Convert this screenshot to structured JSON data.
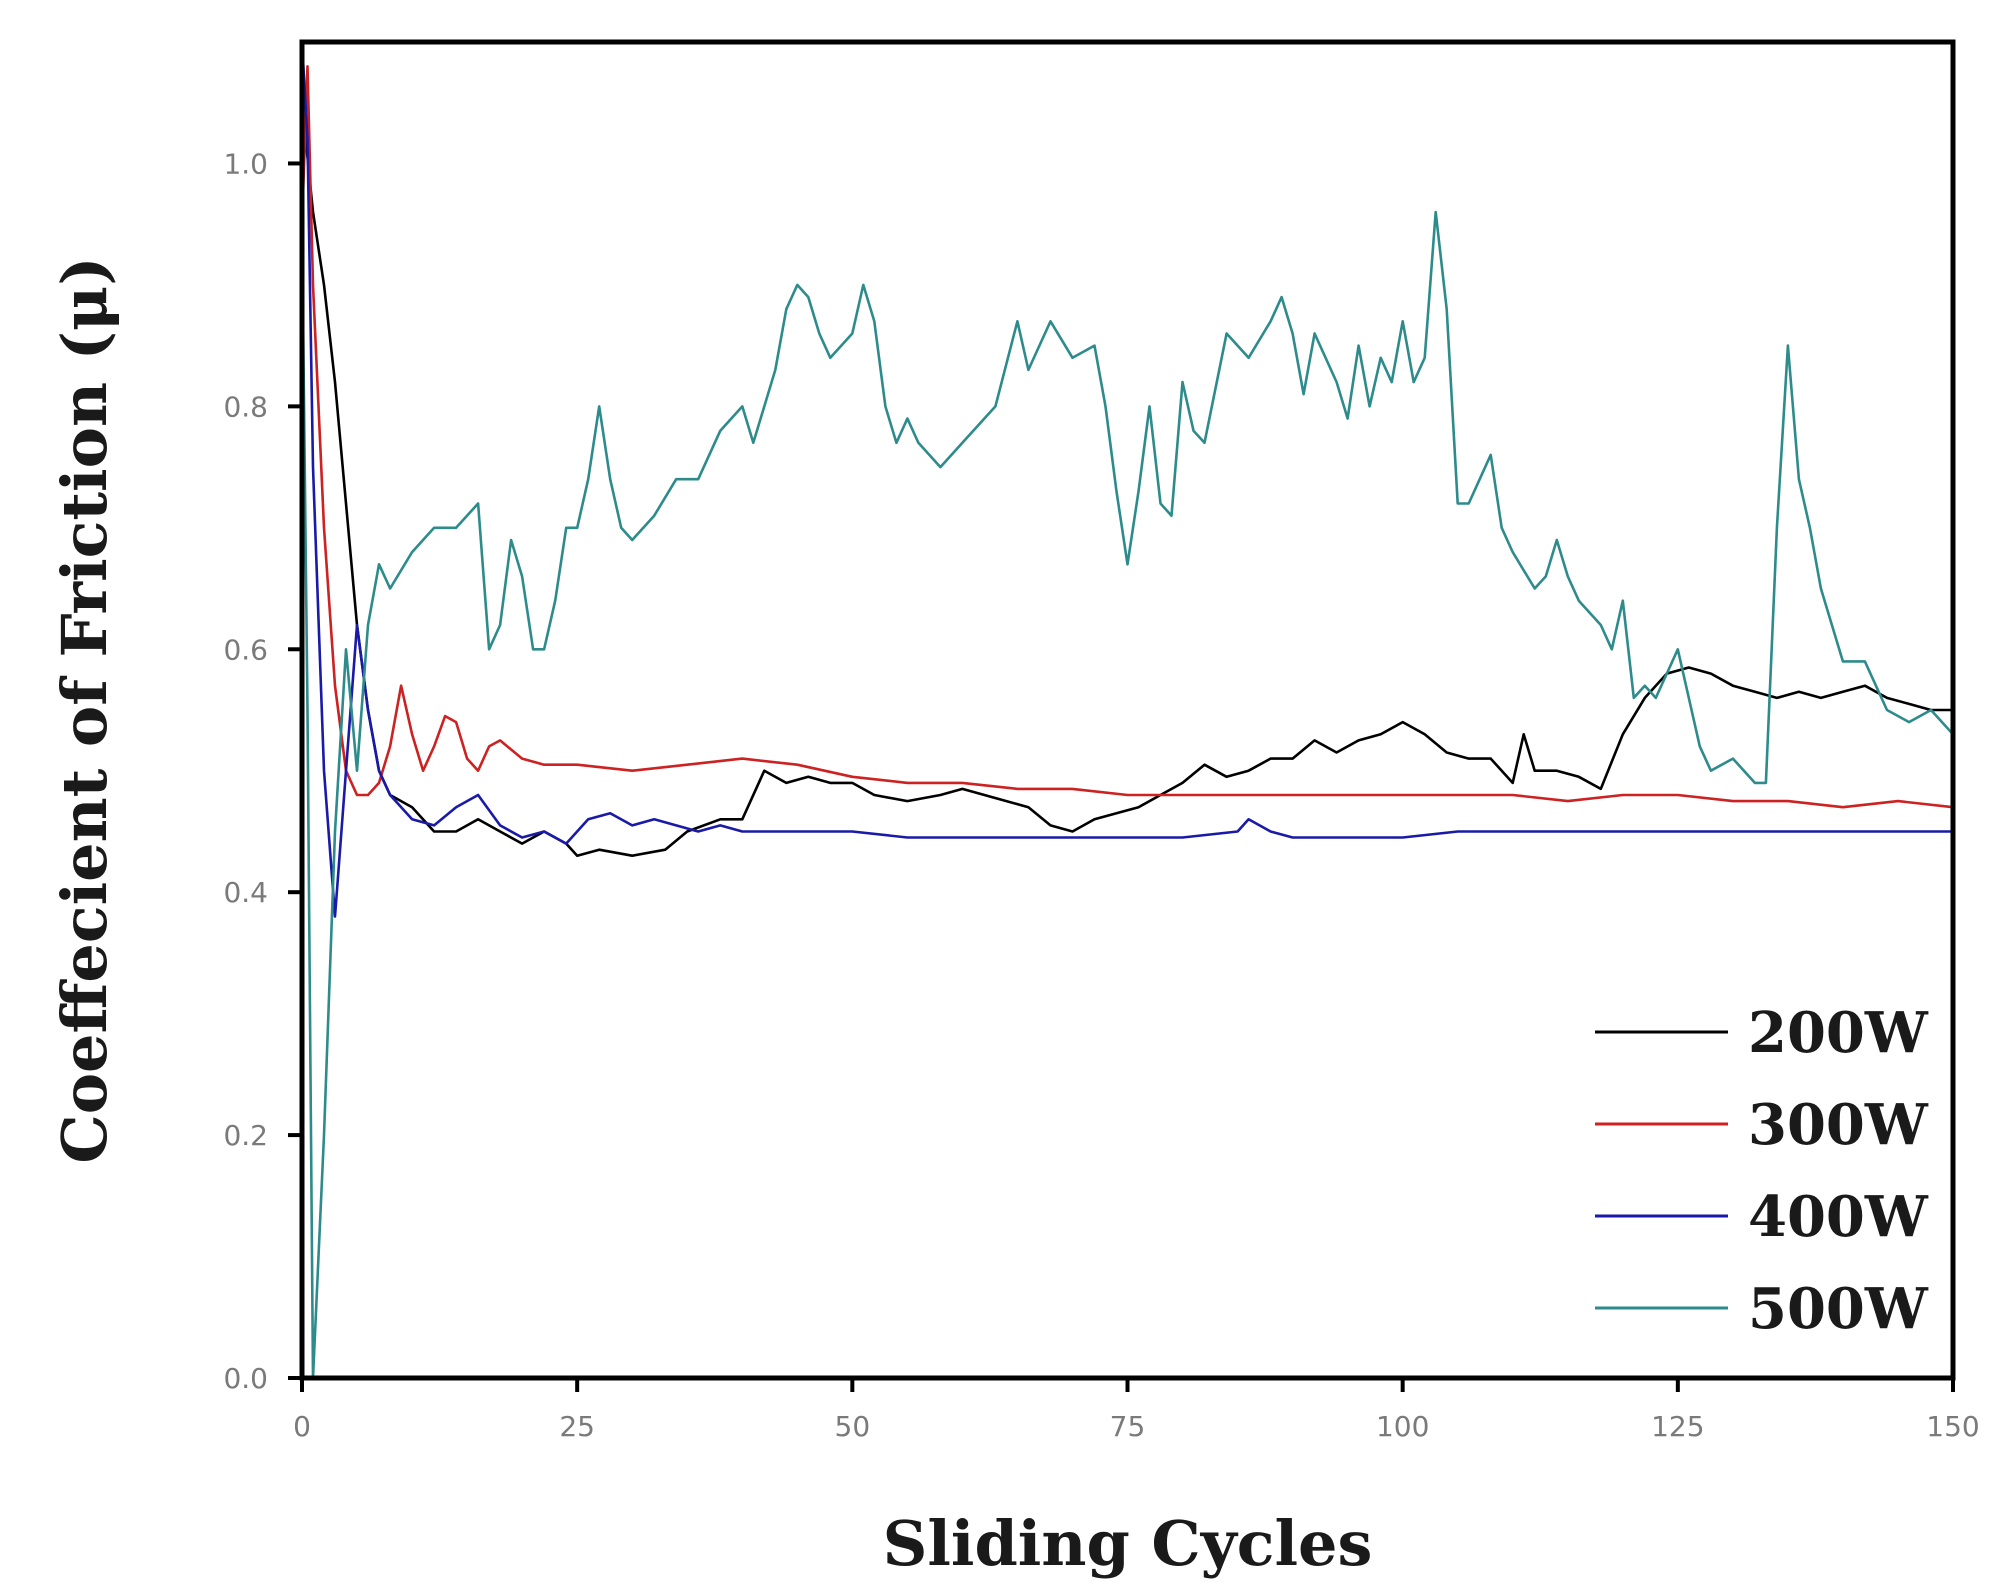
{
  "chart_data": {
    "type": "line",
    "title": "",
    "xlabel": "Sliding Cycles",
    "ylabel": "Coeffecient of Friction (μ)",
    "xlim": [
      0,
      150
    ],
    "ylim": [
      0,
      1.1
    ],
    "x_ticks": [
      0,
      25,
      50,
      75,
      100,
      125,
      150
    ],
    "x_tick_labels": [
      "0",
      "25",
      "50",
      "75",
      "100",
      "125",
      "150"
    ],
    "y_ticks": [
      0.0,
      0.2,
      0.4,
      0.6,
      0.8,
      1.0
    ],
    "y_tick_labels": [
      "0.0",
      "0.2",
      "0.4",
      "0.6",
      "0.8",
      "1.0"
    ],
    "grid": false,
    "legend_position": "bottom-right",
    "series": [
      {
        "name": "200W",
        "color": "#000000",
        "points": [
          [
            0,
            1.05
          ],
          [
            1,
            0.96
          ],
          [
            2,
            0.9
          ],
          [
            3,
            0.82
          ],
          [
            4,
            0.72
          ],
          [
            5,
            0.62
          ],
          [
            6,
            0.55
          ],
          [
            7,
            0.5
          ],
          [
            8,
            0.48
          ],
          [
            10,
            0.47
          ],
          [
            12,
            0.45
          ],
          [
            14,
            0.45
          ],
          [
            16,
            0.46
          ],
          [
            18,
            0.45
          ],
          [
            20,
            0.44
          ],
          [
            22,
            0.45
          ],
          [
            24,
            0.44
          ],
          [
            25,
            0.43
          ],
          [
            27,
            0.435
          ],
          [
            30,
            0.43
          ],
          [
            33,
            0.435
          ],
          [
            35,
            0.45
          ],
          [
            38,
            0.46
          ],
          [
            40,
            0.46
          ],
          [
            42,
            0.5
          ],
          [
            44,
            0.49
          ],
          [
            46,
            0.495
          ],
          [
            48,
            0.49
          ],
          [
            50,
            0.49
          ],
          [
            52,
            0.48
          ],
          [
            55,
            0.475
          ],
          [
            58,
            0.48
          ],
          [
            60,
            0.485
          ],
          [
            62,
            0.48
          ],
          [
            64,
            0.475
          ],
          [
            66,
            0.47
          ],
          [
            68,
            0.455
          ],
          [
            70,
            0.45
          ],
          [
            72,
            0.46
          ],
          [
            74,
            0.465
          ],
          [
            76,
            0.47
          ],
          [
            78,
            0.48
          ],
          [
            80,
            0.49
          ],
          [
            82,
            0.505
          ],
          [
            84,
            0.495
          ],
          [
            86,
            0.5
          ],
          [
            88,
            0.51
          ],
          [
            90,
            0.51
          ],
          [
            92,
            0.525
          ],
          [
            94,
            0.515
          ],
          [
            96,
            0.525
          ],
          [
            98,
            0.53
          ],
          [
            100,
            0.54
          ],
          [
            102,
            0.53
          ],
          [
            104,
            0.515
          ],
          [
            106,
            0.51
          ],
          [
            108,
            0.51
          ],
          [
            110,
            0.49
          ],
          [
            111,
            0.53
          ],
          [
            112,
            0.5
          ],
          [
            114,
            0.5
          ],
          [
            116,
            0.495
          ],
          [
            118,
            0.485
          ],
          [
            120,
            0.53
          ],
          [
            122,
            0.56
          ],
          [
            124,
            0.58
          ],
          [
            126,
            0.585
          ],
          [
            128,
            0.58
          ],
          [
            130,
            0.57
          ],
          [
            132,
            0.565
          ],
          [
            134,
            0.56
          ],
          [
            136,
            0.565
          ],
          [
            138,
            0.56
          ],
          [
            140,
            0.565
          ],
          [
            142,
            0.57
          ],
          [
            144,
            0.56
          ],
          [
            146,
            0.555
          ],
          [
            148,
            0.55
          ],
          [
            150,
            0.55
          ]
        ]
      },
      {
        "name": "300W",
        "color": "#cc2222",
        "points": [
          [
            0,
            0.95
          ],
          [
            0.5,
            1.08
          ],
          [
            1,
            0.9
          ],
          [
            2,
            0.7
          ],
          [
            3,
            0.57
          ],
          [
            4,
            0.5
          ],
          [
            5,
            0.48
          ],
          [
            6,
            0.48
          ],
          [
            7,
            0.49
          ],
          [
            8,
            0.52
          ],
          [
            9,
            0.57
          ],
          [
            10,
            0.53
          ],
          [
            11,
            0.5
          ],
          [
            12,
            0.52
          ],
          [
            13,
            0.545
          ],
          [
            14,
            0.54
          ],
          [
            15,
            0.51
          ],
          [
            16,
            0.5
          ],
          [
            17,
            0.52
          ],
          [
            18,
            0.525
          ],
          [
            20,
            0.51
          ],
          [
            22,
            0.505
          ],
          [
            25,
            0.505
          ],
          [
            30,
            0.5
          ],
          [
            35,
            0.505
          ],
          [
            40,
            0.51
          ],
          [
            45,
            0.505
          ],
          [
            50,
            0.495
          ],
          [
            55,
            0.49
          ],
          [
            60,
            0.49
          ],
          [
            65,
            0.485
          ],
          [
            70,
            0.485
          ],
          [
            75,
            0.48
          ],
          [
            80,
            0.48
          ],
          [
            85,
            0.48
          ],
          [
            90,
            0.48
          ],
          [
            95,
            0.48
          ],
          [
            100,
            0.48
          ],
          [
            105,
            0.48
          ],
          [
            110,
            0.48
          ],
          [
            115,
            0.475
          ],
          [
            120,
            0.48
          ],
          [
            125,
            0.48
          ],
          [
            130,
            0.475
          ],
          [
            135,
            0.475
          ],
          [
            140,
            0.47
          ],
          [
            145,
            0.475
          ],
          [
            150,
            0.47
          ]
        ]
      },
      {
        "name": "400W",
        "color": "#1a1aa8",
        "points": [
          [
            0,
            1.1
          ],
          [
            0.5,
            1.02
          ],
          [
            1,
            0.75
          ],
          [
            2,
            0.5
          ],
          [
            3,
            0.38
          ],
          [
            4,
            0.5
          ],
          [
            5,
            0.62
          ],
          [
            6,
            0.55
          ],
          [
            7,
            0.5
          ],
          [
            8,
            0.48
          ],
          [
            10,
            0.46
          ],
          [
            12,
            0.455
          ],
          [
            14,
            0.47
          ],
          [
            16,
            0.48
          ],
          [
            18,
            0.455
          ],
          [
            20,
            0.445
          ],
          [
            22,
            0.45
          ],
          [
            24,
            0.44
          ],
          [
            26,
            0.46
          ],
          [
            28,
            0.465
          ],
          [
            30,
            0.455
          ],
          [
            32,
            0.46
          ],
          [
            34,
            0.455
          ],
          [
            36,
            0.45
          ],
          [
            38,
            0.455
          ],
          [
            40,
            0.45
          ],
          [
            45,
            0.45
          ],
          [
            50,
            0.45
          ],
          [
            55,
            0.445
          ],
          [
            60,
            0.445
          ],
          [
            65,
            0.445
          ],
          [
            70,
            0.445
          ],
          [
            75,
            0.445
          ],
          [
            80,
            0.445
          ],
          [
            85,
            0.45
          ],
          [
            86,
            0.46
          ],
          [
            88,
            0.45
          ],
          [
            90,
            0.445
          ],
          [
            95,
            0.445
          ],
          [
            100,
            0.445
          ],
          [
            105,
            0.45
          ],
          [
            110,
            0.45
          ],
          [
            115,
            0.45
          ],
          [
            120,
            0.45
          ],
          [
            125,
            0.45
          ],
          [
            130,
            0.45
          ],
          [
            135,
            0.45
          ],
          [
            140,
            0.45
          ],
          [
            145,
            0.45
          ],
          [
            150,
            0.45
          ]
        ]
      },
      {
        "name": "500W",
        "color": "#2e8b8b",
        "points": [
          [
            0,
            0.95
          ],
          [
            0.5,
            0.55
          ],
          [
            1,
            0.0
          ],
          [
            2,
            0.2
          ],
          [
            3,
            0.45
          ],
          [
            4,
            0.6
          ],
          [
            5,
            0.5
          ],
          [
            6,
            0.62
          ],
          [
            7,
            0.67
          ],
          [
            8,
            0.65
          ],
          [
            10,
            0.68
          ],
          [
            12,
            0.7
          ],
          [
            14,
            0.7
          ],
          [
            16,
            0.72
          ],
          [
            17,
            0.6
          ],
          [
            18,
            0.62
          ],
          [
            19,
            0.69
          ],
          [
            20,
            0.66
          ],
          [
            21,
            0.6
          ],
          [
            22,
            0.6
          ],
          [
            23,
            0.64
          ],
          [
            24,
            0.7
          ],
          [
            25,
            0.7
          ],
          [
            26,
            0.74
          ],
          [
            27,
            0.8
          ],
          [
            28,
            0.74
          ],
          [
            29,
            0.7
          ],
          [
            30,
            0.69
          ],
          [
            32,
            0.71
          ],
          [
            34,
            0.74
          ],
          [
            36,
            0.74
          ],
          [
            38,
            0.78
          ],
          [
            40,
            0.8
          ],
          [
            41,
            0.77
          ],
          [
            43,
            0.83
          ],
          [
            44,
            0.88
          ],
          [
            45,
            0.9
          ],
          [
            46,
            0.89
          ],
          [
            47,
            0.86
          ],
          [
            48,
            0.84
          ],
          [
            50,
            0.86
          ],
          [
            51,
            0.9
          ],
          [
            52,
            0.87
          ],
          [
            53,
            0.8
          ],
          [
            54,
            0.77
          ],
          [
            55,
            0.79
          ],
          [
            56,
            0.77
          ],
          [
            58,
            0.75
          ],
          [
            60,
            0.77
          ],
          [
            62,
            0.79
          ],
          [
            63,
            0.8
          ],
          [
            65,
            0.87
          ],
          [
            66,
            0.83
          ],
          [
            67,
            0.85
          ],
          [
            68,
            0.87
          ],
          [
            70,
            0.84
          ],
          [
            72,
            0.85
          ],
          [
            73,
            0.8
          ],
          [
            74,
            0.73
          ],
          [
            75,
            0.67
          ],
          [
            76,
            0.73
          ],
          [
            77,
            0.8
          ],
          [
            78,
            0.72
          ],
          [
            79,
            0.71
          ],
          [
            80,
            0.82
          ],
          [
            81,
            0.78
          ],
          [
            82,
            0.77
          ],
          [
            84,
            0.86
          ],
          [
            86,
            0.84
          ],
          [
            88,
            0.87
          ],
          [
            89,
            0.89
          ],
          [
            90,
            0.86
          ],
          [
            91,
            0.81
          ],
          [
            92,
            0.86
          ],
          [
            94,
            0.82
          ],
          [
            95,
            0.79
          ],
          [
            96,
            0.85
          ],
          [
            97,
            0.8
          ],
          [
            98,
            0.84
          ],
          [
            99,
            0.82
          ],
          [
            100,
            0.87
          ],
          [
            101,
            0.82
          ],
          [
            102,
            0.84
          ],
          [
            103,
            0.96
          ],
          [
            104,
            0.88
          ],
          [
            105,
            0.72
          ],
          [
            106,
            0.72
          ],
          [
            107,
            0.74
          ],
          [
            108,
            0.76
          ],
          [
            109,
            0.7
          ],
          [
            110,
            0.68
          ],
          [
            112,
            0.65
          ],
          [
            113,
            0.66
          ],
          [
            114,
            0.69
          ],
          [
            115,
            0.66
          ],
          [
            116,
            0.64
          ],
          [
            118,
            0.62
          ],
          [
            119,
            0.6
          ],
          [
            120,
            0.64
          ],
          [
            121,
            0.56
          ],
          [
            122,
            0.57
          ],
          [
            123,
            0.56
          ],
          [
            124,
            0.58
          ],
          [
            125,
            0.6
          ],
          [
            126,
            0.56
          ],
          [
            127,
            0.52
          ],
          [
            128,
            0.5
          ],
          [
            130,
            0.51
          ],
          [
            132,
            0.49
          ],
          [
            133,
            0.49
          ],
          [
            134,
            0.7
          ],
          [
            135,
            0.85
          ],
          [
            136,
            0.74
          ],
          [
            137,
            0.7
          ],
          [
            138,
            0.65
          ],
          [
            139,
            0.62
          ],
          [
            140,
            0.59
          ],
          [
            142,
            0.59
          ],
          [
            144,
            0.55
          ],
          [
            146,
            0.54
          ],
          [
            148,
            0.55
          ],
          [
            150,
            0.53
          ]
        ]
      }
    ]
  }
}
